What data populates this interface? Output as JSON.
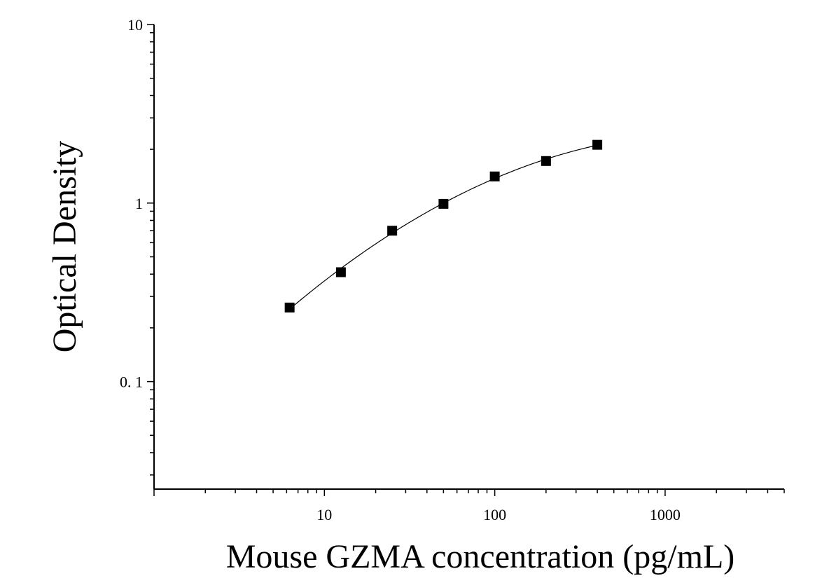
{
  "chart_data": {
    "type": "scatter",
    "xlabel": "Mouse GZMA concentration (pg/mL)",
    "ylabel": "Optical Density",
    "x_scale": "log",
    "y_scale": "log",
    "xlim": [
      1,
      5000
    ],
    "ylim": [
      0.025,
      10
    ],
    "x_ticks": [
      {
        "value": 10,
        "label": "10"
      },
      {
        "value": 100,
        "label": "100"
      },
      {
        "value": 1000,
        "label": "1000"
      }
    ],
    "y_ticks": [
      {
        "value": 0.1,
        "label": "0. 1"
      },
      {
        "value": 1,
        "label": "1"
      },
      {
        "value": 10,
        "label": "10"
      }
    ],
    "grid": false,
    "series": [
      {
        "marker": "square",
        "color": "#000000",
        "fit_curve": true,
        "x": [
          6.25,
          12.5,
          25,
          50,
          100,
          200,
          400
        ],
        "y": [
          0.26,
          0.41,
          0.7,
          0.99,
          1.41,
          1.72,
          2.12
        ]
      }
    ]
  }
}
